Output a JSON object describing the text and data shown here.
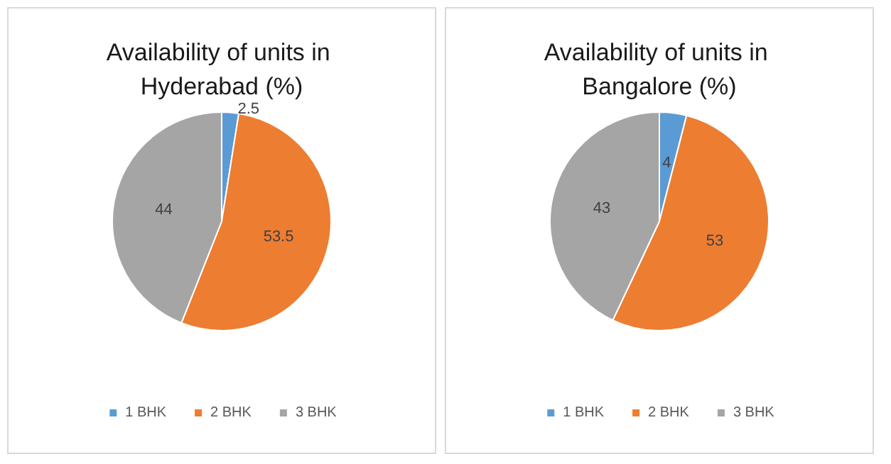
{
  "chart_data": [
    {
      "type": "pie",
      "title": "Availability of units in Hyderabad (%)",
      "categories": [
        "1 BHK",
        "2 BHK",
        "3 BHK"
      ],
      "values": [
        2.5,
        53.5,
        44
      ],
      "colors": [
        "#5b9bd5",
        "#ed7d31",
        "#a5a5a5"
      ],
      "data_labels": true,
      "legend": "bottom"
    },
    {
      "type": "pie",
      "title": "Availability of units in Bangalore (%)",
      "categories": [
        "1 BHK",
        "2 BHK",
        "3 BHK"
      ],
      "values": [
        4,
        53,
        43
      ],
      "colors": [
        "#5b9bd5",
        "#ed7d31",
        "#a5a5a5"
      ],
      "data_labels": true,
      "legend": "bottom"
    }
  ]
}
